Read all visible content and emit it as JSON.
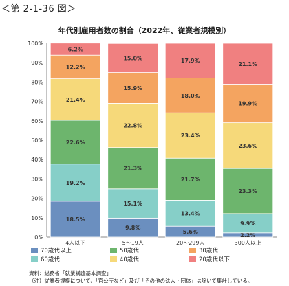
{
  "figure_label": "＜第 2-1-36 図＞",
  "source_lines": [
    "資料：総務省「就業構造基本調査」",
    "（注）従業者規模について、「官公庁など」及び「その他の法人・団体」は除いて集計している。"
  ],
  "chart_data": {
    "type": "bar",
    "stacked": true,
    "title": "年代別雇用者数の割合（2022年、従業者規模別）",
    "categories": [
      "4人以下",
      "5～19人",
      "20～299人",
      "300人以上"
    ],
    "yticks": [
      "0%",
      "10%",
      "20%",
      "30%",
      "40%",
      "50%",
      "60%",
      "70%",
      "80%",
      "90%",
      "100%"
    ],
    "ylim": [
      0,
      100
    ],
    "series": [
      {
        "name": "70歳代以上",
        "color": "#6b8fbf",
        "values": [
          18.5,
          9.8,
          5.6,
          2.2
        ]
      },
      {
        "name": "60歳代",
        "color": "#86cfc8",
        "values": [
          19.2,
          15.1,
          13.4,
          9.9
        ]
      },
      {
        "name": "50歳代",
        "color": "#6db56d",
        "values": [
          22.6,
          21.3,
          21.7,
          23.3
        ]
      },
      {
        "name": "40歳代",
        "color": "#f6d97a",
        "values": [
          21.4,
          22.8,
          23.4,
          23.6
        ]
      },
      {
        "name": "30歳代",
        "color": "#f4a460",
        "values": [
          12.2,
          15.9,
          18.0,
          19.9
        ]
      },
      {
        "name": "20歳代以下",
        "color": "#f08080",
        "values": [
          6.2,
          15.0,
          17.9,
          21.1
        ]
      }
    ],
    "legend_position": "bottom"
  }
}
